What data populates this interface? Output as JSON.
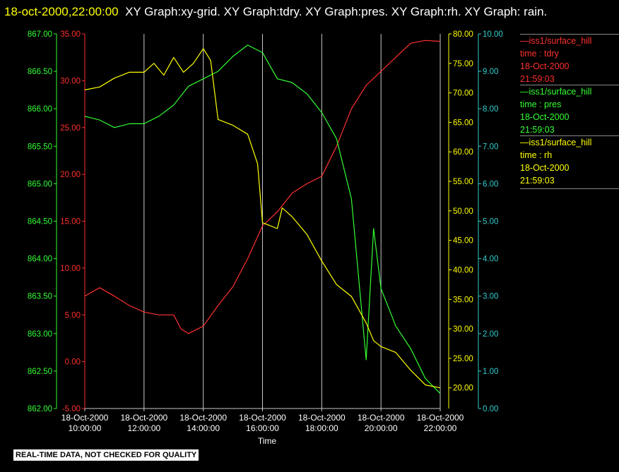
{
  "header": {
    "timestamp": "18-oct-2000,22:00:00",
    "text": "XY Graph:xy-grid.  XY Graph:tdry.  XY Graph:pres.  XY Graph:rh.  XY Graph: rain."
  },
  "legend": [
    {
      "name": "—iss1/surface_hill",
      "line2": "time : tdry",
      "line3": "18-Oct-2000",
      "line4": "21:59:03",
      "color": "#ff3030"
    },
    {
      "name": "—iss1/surface_hill",
      "line2": "time : pres",
      "line3": "18-Oct-2000",
      "line4": "21:59:03",
      "color": "#33ff33"
    },
    {
      "name": "—iss1/surface_hill",
      "line2": "time : rh",
      "line3": "18-Oct-2000",
      "line4": "21:59:03",
      "color": "#ffff00"
    }
  ],
  "footer": {
    "quality": "REAL-TIME DATA, NOT CHECKED FOR QUALITY"
  },
  "chart_data": {
    "type": "line",
    "xlabel": "Time",
    "x_ticks": [
      {
        "date": "18-Oct-2000",
        "time": "10:00:00"
      },
      {
        "date": "18-Oct-2000",
        "time": "12:00:00"
      },
      {
        "date": "18-Oct-2000",
        "time": "14:00:00"
      },
      {
        "date": "18-Oct-2000",
        "time": "16:00:00"
      },
      {
        "date": "18-Oct-2000",
        "time": "18:00:00"
      },
      {
        "date": "18-Oct-2000",
        "time": "20:00:00"
      },
      {
        "date": "18-Oct-2000",
        "time": "22:00:00"
      }
    ],
    "xlim": [
      "18-Oct-2000 10:00:00",
      "18-Oct-2000 22:00:00"
    ],
    "grid": "vertical",
    "axes": {
      "pres": {
        "ticks": [
          "867.00",
          "866.50",
          "866.00",
          "865.50",
          "865.00",
          "864.50",
          "864.00",
          "863.50",
          "863.00",
          "862.50",
          "862.00"
        ],
        "ylim": [
          862.0,
          867.0
        ],
        "color": "#33ff33"
      },
      "tdry": {
        "ticks": [
          "35.00",
          "30.00",
          "25.00",
          "20.00",
          "15.00",
          "10.00",
          "5.00",
          "0.00",
          "-5.00"
        ],
        "ylim": [
          -5,
          35
        ],
        "color": "#ff3030"
      },
      "rh": {
        "ticks": [
          "80.00",
          "75.00",
          "70.00",
          "65.00",
          "60.00",
          "55.00",
          "50.00",
          "45.00",
          "40.00",
          "35.00",
          "30.00",
          "25.00",
          "20.00"
        ],
        "ylim": [
          16.5,
          80
        ],
        "color": "#ffff00"
      },
      "rain": {
        "ticks": [
          "10.00",
          "9.00",
          "8.00",
          "7.00",
          "6.00",
          "5.00",
          "4.00",
          "3.00",
          "2.00",
          "1.00",
          "0.00"
        ],
        "ylim": [
          0,
          10
        ],
        "color": "#33cccc"
      }
    },
    "series": [
      {
        "name": "tdry",
        "axis": "tdry",
        "color": "#ff3030",
        "x": [
          "10:00",
          "10:30",
          "11:00",
          "11:30",
          "12:00",
          "12:30",
          "13:00",
          "13:15",
          "13:30",
          "14:00",
          "14:30",
          "15:00",
          "15:30",
          "16:00",
          "16:30",
          "17:00",
          "17:30",
          "18:00",
          "18:30",
          "19:00",
          "19:30",
          "20:00",
          "20:30",
          "21:00",
          "21:30",
          "22:00"
        ],
        "values": [
          7.0,
          7.9,
          7.0,
          6.0,
          5.3,
          5.0,
          5.0,
          3.5,
          3.0,
          3.8,
          6.0,
          8.0,
          11.0,
          14.5,
          16.0,
          18.0,
          19.0,
          19.8,
          23.0,
          27.0,
          29.5,
          31.0,
          32.5,
          34.0,
          34.3,
          34.2
        ]
      },
      {
        "name": "pres",
        "axis": "pres",
        "color": "#33ff33",
        "x": [
          "10:00",
          "10:30",
          "11:00",
          "11:30",
          "12:00",
          "12:30",
          "13:00",
          "13:30",
          "14:00",
          "14:30",
          "15:00",
          "15:30",
          "16:00",
          "16:30",
          "17:00",
          "17:30",
          "18:00",
          "18:30",
          "19:00",
          "19:30",
          "19:45",
          "20:00",
          "20:30",
          "21:00",
          "21:30",
          "22:00"
        ],
        "values": [
          865.9,
          865.85,
          865.75,
          865.8,
          865.8,
          865.9,
          866.05,
          866.3,
          866.4,
          866.5,
          866.7,
          866.85,
          866.75,
          866.4,
          866.35,
          866.2,
          865.95,
          865.6,
          864.8,
          862.65,
          864.4,
          863.6,
          863.1,
          862.8,
          862.4,
          862.2
        ]
      },
      {
        "name": "rh",
        "axis": "rh",
        "color": "#ffff00",
        "x": [
          "10:00",
          "10:30",
          "11:00",
          "11:30",
          "12:00",
          "12:20",
          "12:40",
          "13:00",
          "13:20",
          "13:40",
          "14:00",
          "14:15",
          "14:30",
          "15:00",
          "15:30",
          "15:50",
          "16:00",
          "16:30",
          "16:40",
          "17:00",
          "17:30",
          "18:00",
          "18:30",
          "19:00",
          "19:30",
          "19:45",
          "20:00",
          "20:30",
          "21:00",
          "21:30",
          "22:00"
        ],
        "values": [
          70.5,
          71.0,
          72.5,
          73.5,
          73.5,
          75.0,
          73.0,
          76.0,
          73.5,
          75.0,
          77.5,
          75.5,
          65.5,
          64.5,
          63.0,
          58.0,
          48.0,
          47.0,
          50.5,
          49.0,
          46.0,
          41.5,
          37.5,
          35.5,
          31.0,
          28.0,
          27.0,
          26.0,
          23.0,
          20.5,
          20.0
        ]
      }
    ]
  }
}
